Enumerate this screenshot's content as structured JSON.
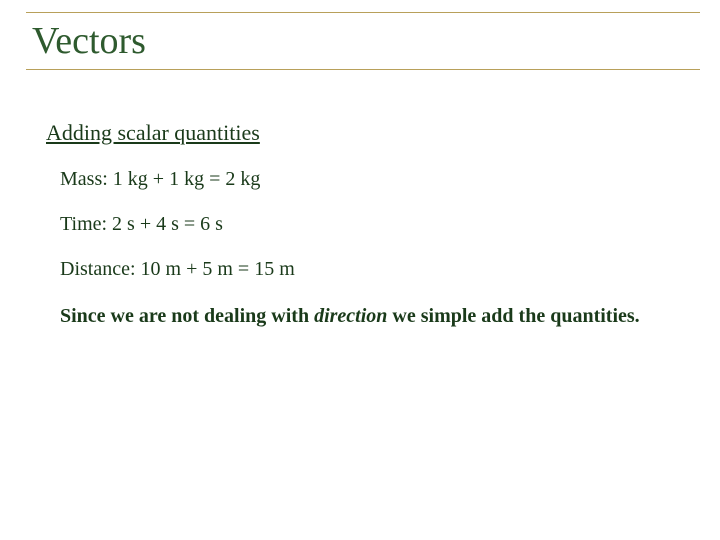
{
  "colors": {
    "title_text": "#2e5a2e",
    "rule": "#b8a05a",
    "body_text": "#1a3a1a"
  },
  "title": "Vectors",
  "subtitle": "Adding scalar quantities",
  "examples": [
    "Mass: 1 kg + 1 kg = 2 kg",
    "Time: 2 s + 4 s = 6 s",
    "Distance: 10 m + 5 m = 15 m"
  ],
  "summary": {
    "pre": "Since we are not dealing with ",
    "emph": "direction",
    "post": " we simple add the quantities."
  }
}
